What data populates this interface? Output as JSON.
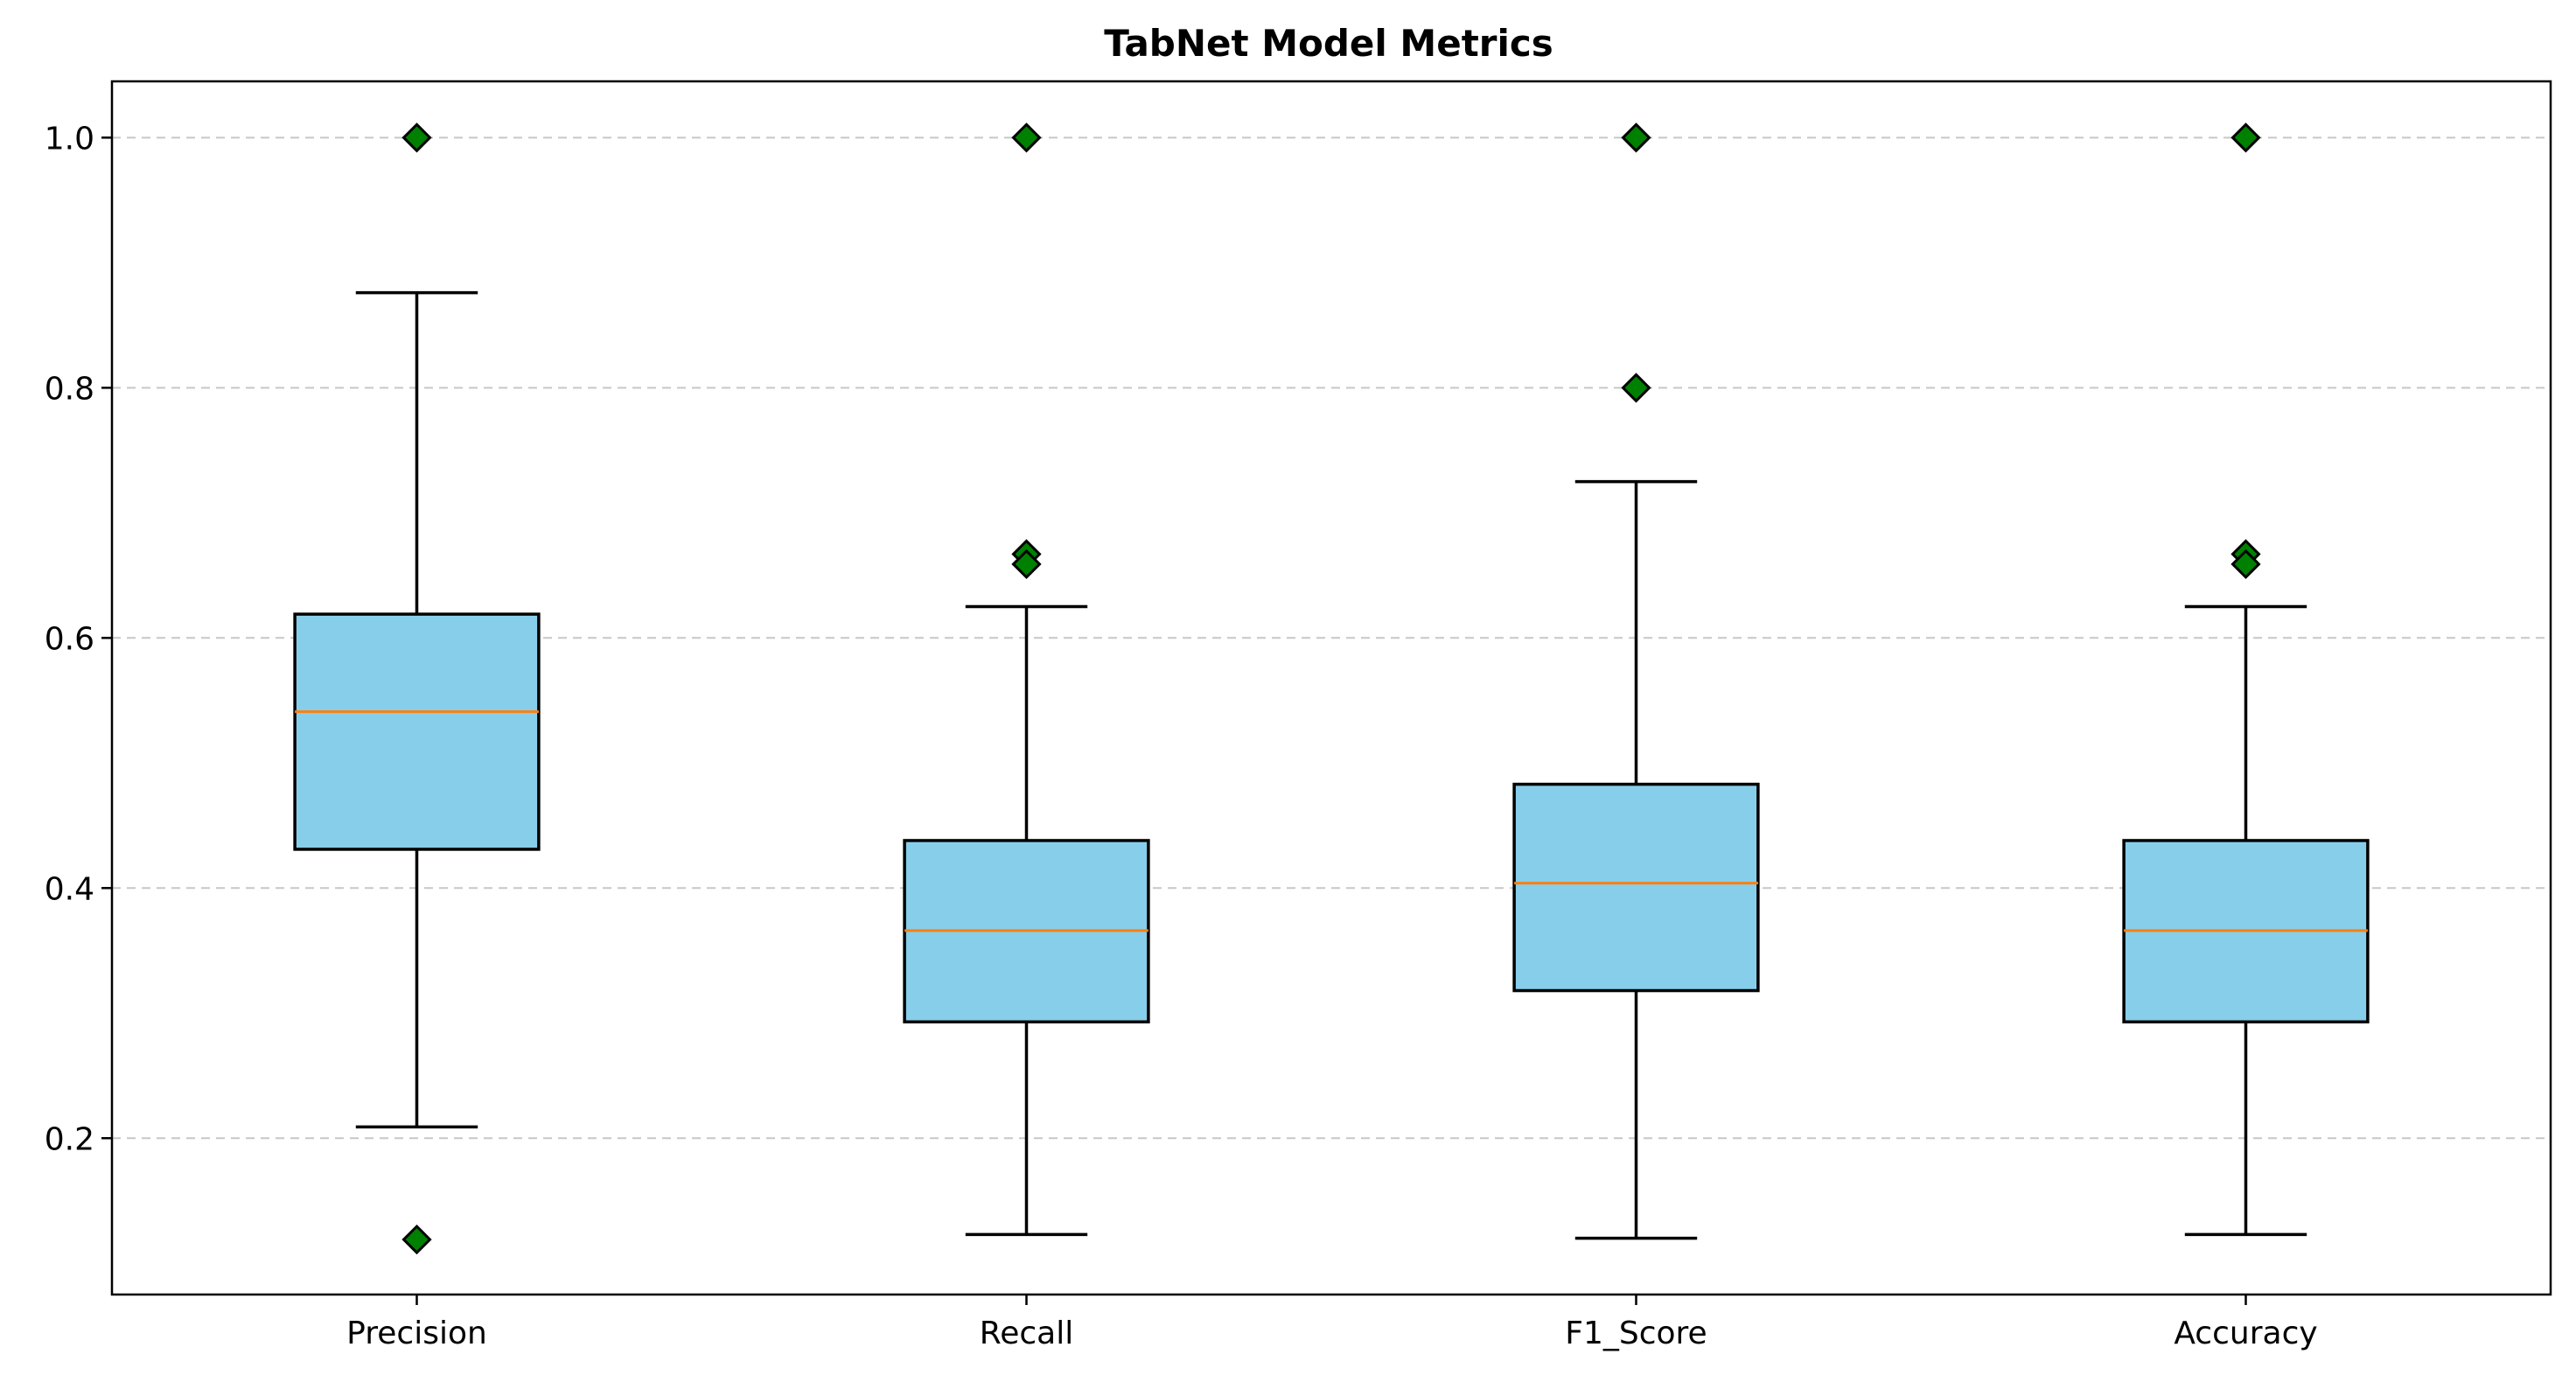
{
  "chart_data": {
    "type": "box",
    "title": "TabNet Model Metrics",
    "xlabel": "",
    "ylabel": "",
    "categories": [
      "Precision",
      "Recall",
      "F1_Score",
      "Accuracy"
    ],
    "ylim": [
      0.075,
      1.045
    ],
    "yticks": [
      0.2,
      0.4,
      0.6,
      0.8,
      1.0
    ],
    "ytick_labels": [
      "0.2",
      "0.4",
      "0.6",
      "0.8",
      "1.0"
    ],
    "grid": "y-dashed",
    "colors": {
      "box": "#87ceeb",
      "median": "#ff7f0e",
      "flier": "#008000"
    },
    "boxes": [
      {
        "name": "Precision",
        "whisker_low": 0.209,
        "q1": 0.431,
        "median": 0.541,
        "q3": 0.619,
        "whisker_high": 0.876,
        "outliers": [
          1.0,
          0.119
        ]
      },
      {
        "name": "Recall",
        "whisker_low": 0.123,
        "q1": 0.293,
        "median": 0.366,
        "q3": 0.438,
        "whisker_high": 0.625,
        "outliers": [
          1.0,
          0.667,
          0.659
        ]
      },
      {
        "name": "F1_Score",
        "whisker_low": 0.12,
        "q1": 0.318,
        "median": 0.404,
        "q3": 0.483,
        "whisker_high": 0.725,
        "outliers": [
          1.0,
          0.8
        ]
      },
      {
        "name": "Accuracy",
        "whisker_low": 0.123,
        "q1": 0.293,
        "median": 0.366,
        "q3": 0.438,
        "whisker_high": 0.625,
        "outliers": [
          1.0,
          0.667,
          0.659
        ]
      }
    ]
  }
}
